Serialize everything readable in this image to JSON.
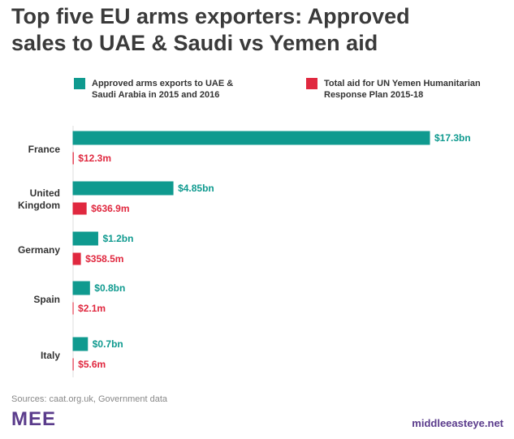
{
  "chart_data": {
    "type": "hbar",
    "title": "Top five EU arms exporters: Approved sales to UAE & Saudi vs Yemen aid",
    "categories": [
      "France",
      "United Kingdom",
      "Germany",
      "Spain",
      "Italy"
    ],
    "series": [
      {
        "name": "Approved arms exports to UAE & Saudi Arabia in 2015 and 2016",
        "color": "#0f9a8f",
        "values": [
          17300000000,
          4850000000,
          1200000000,
          800000000,
          700000000
        ],
        "value_labels": [
          "$17.3bn",
          "$4.85bn",
          "$1.2bn",
          "$0.8bn",
          "$0.7bn"
        ]
      },
      {
        "name": "Total aid for UN Yemen Humanitarian Response Plan 2015-18",
        "color": "#e0283f",
        "values": [
          12300000,
          636900000,
          358500000,
          2100000,
          5600000
        ],
        "value_labels": [
          "$12.3m",
          "$636.9m",
          "$358.5m",
          "$2.1m",
          "$5.6m"
        ]
      }
    ],
    "source": "Sources: caat.org.uk, Government data",
    "logo": "MEE",
    "website": "middleeasteye.net"
  }
}
